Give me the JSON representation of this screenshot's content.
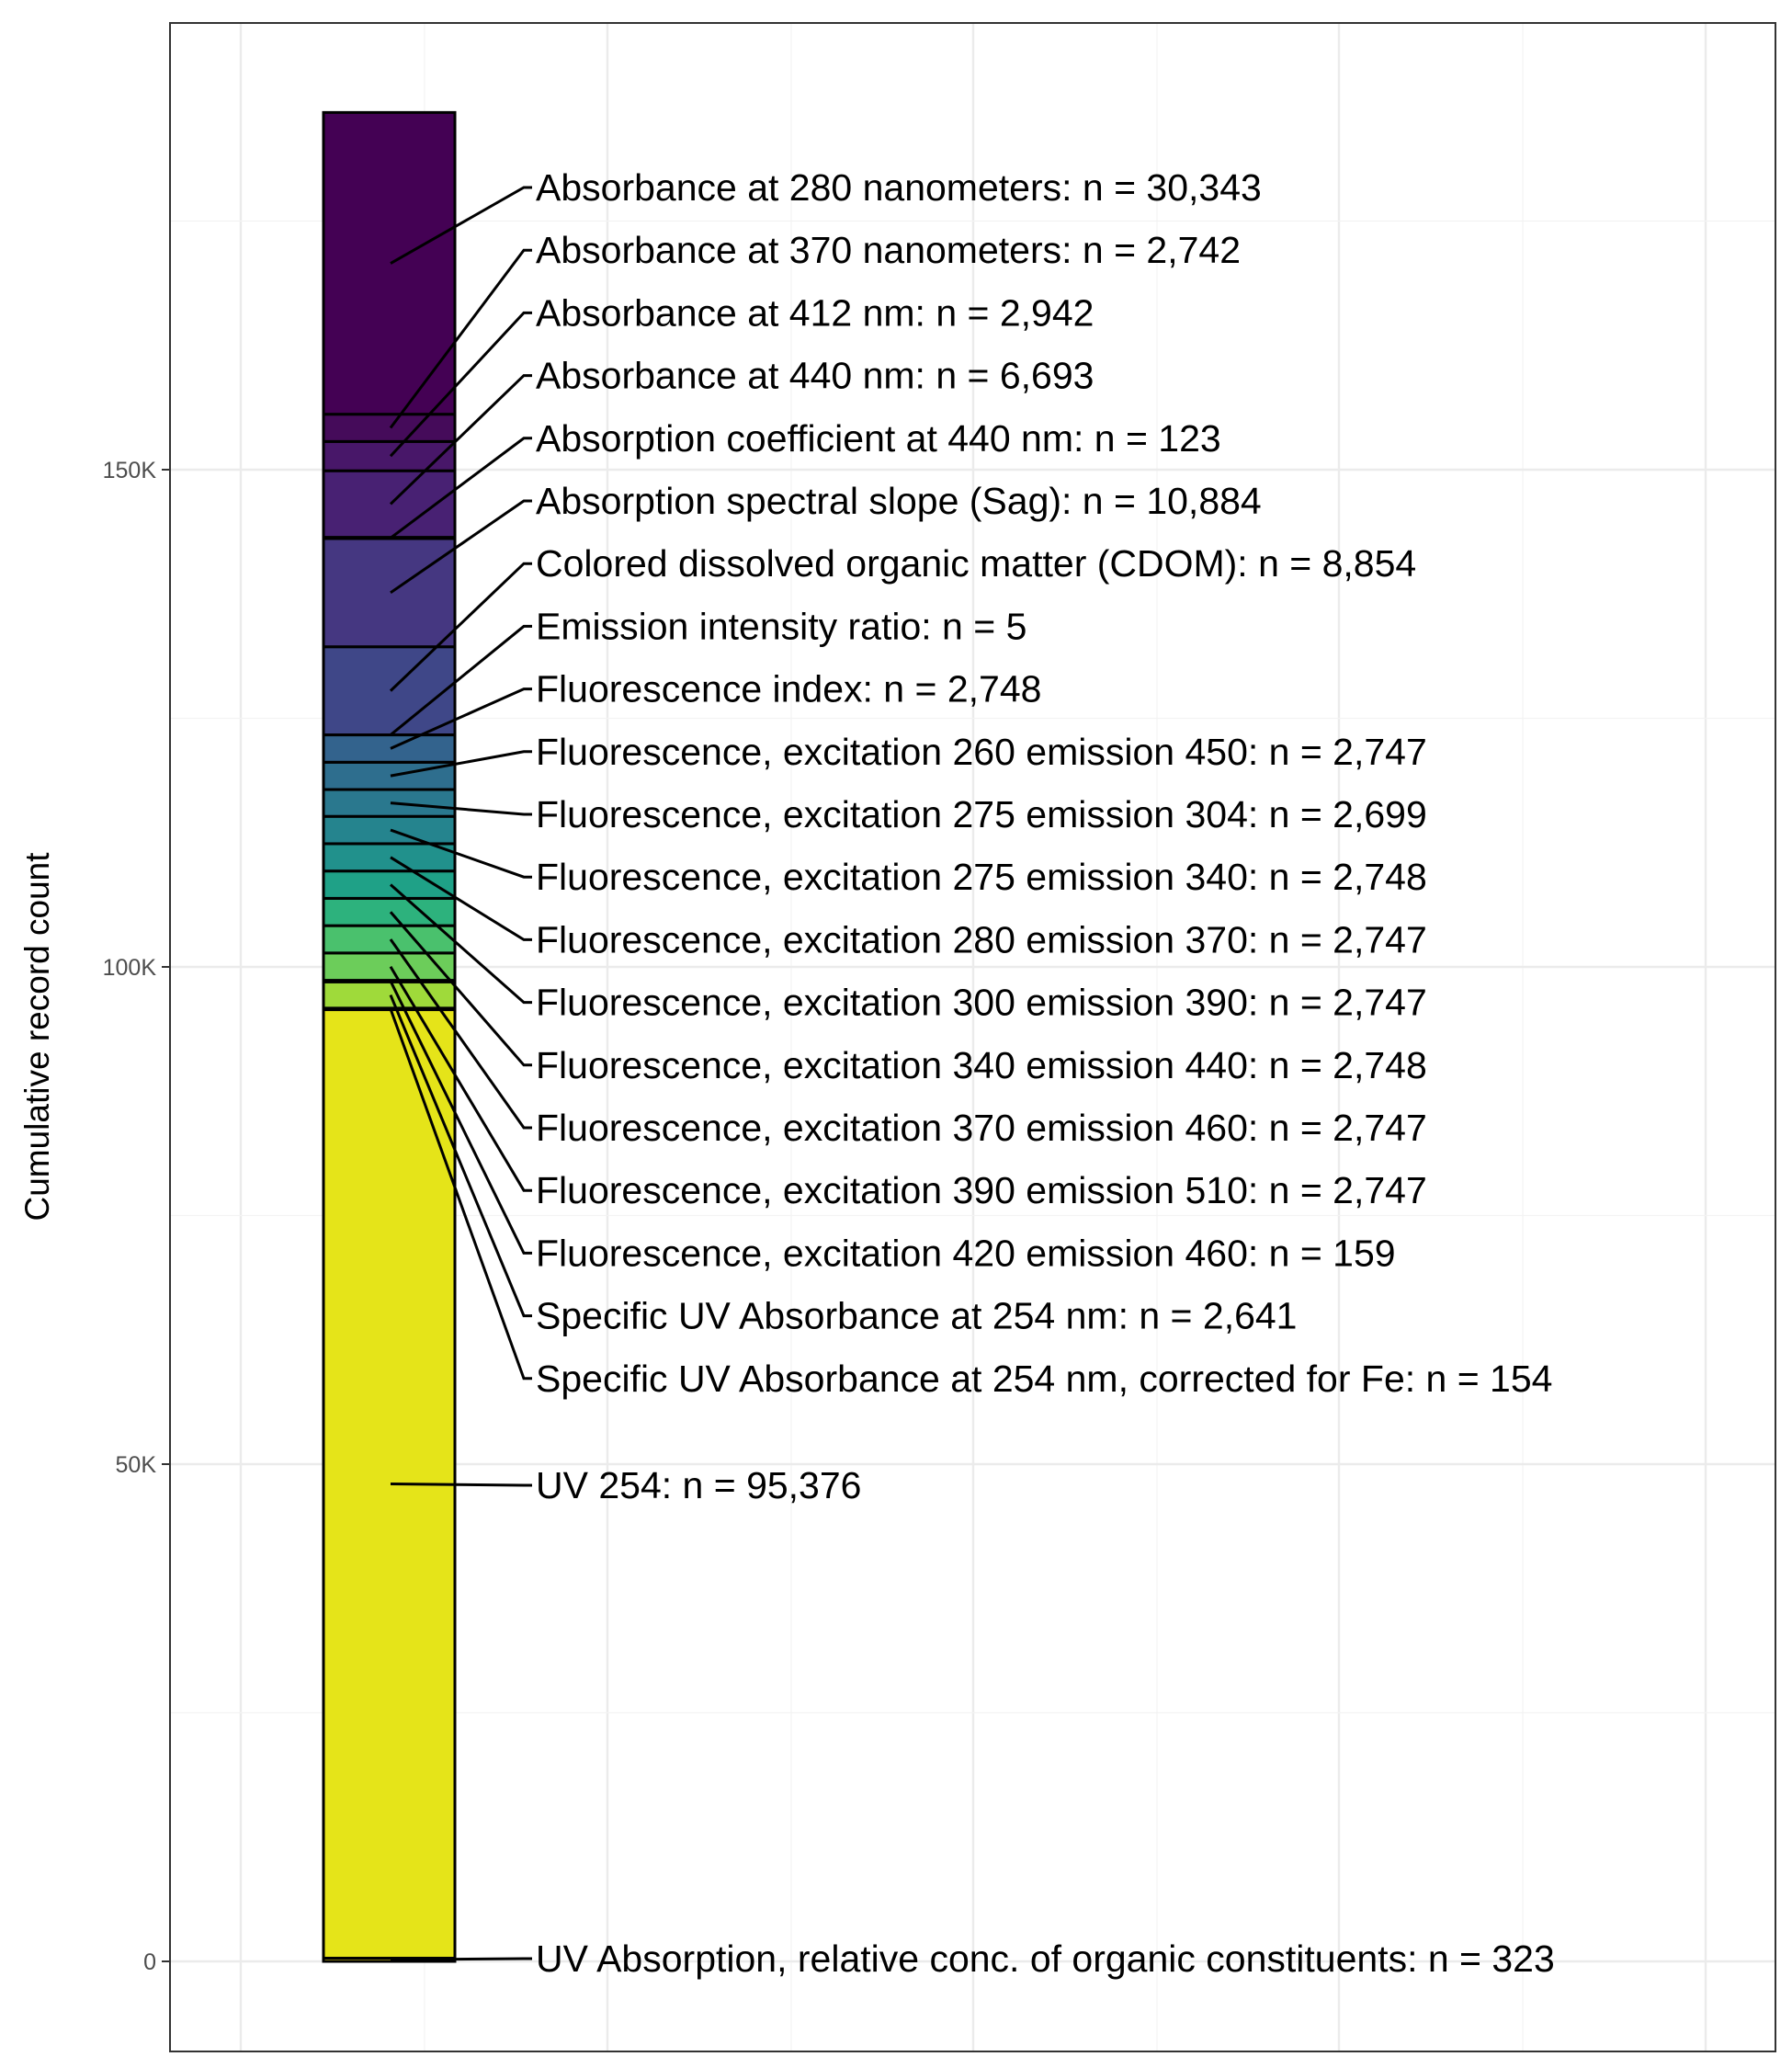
{
  "chart_data": {
    "type": "bar",
    "stacked": true,
    "ylabel": "Cumulative record count",
    "ylim": [
      -12000,
      182000
    ],
    "yticks": [
      {
        "value": 0,
        "label": "0"
      },
      {
        "value": 50000,
        "label": "50K"
      },
      {
        "value": 100000,
        "label": "100K"
      },
      {
        "value": 150000,
        "label": "150K"
      }
    ],
    "grid": true,
    "series": [
      {
        "name": "UV Absorption, relative conc. of organic constituents",
        "value": 323,
        "label": "UV Absorption, relative conc. of organic constituents: n = 323",
        "color": "#fde725"
      },
      {
        "name": "UV 254",
        "value": 95376,
        "label": "UV 254: n = 95,376",
        "color": "#e5e419"
      },
      {
        "name": "Specific UV Absorbance at 254 nm, corrected for Fe",
        "value": 154,
        "label": "Specific UV Absorbance at 254 nm, corrected for Fe: n = 154",
        "color": "#c2df23"
      },
      {
        "name": "Specific UV Absorbance at 254 nm",
        "value": 2641,
        "label": "Specific UV Absorbance at 254 nm: n = 2,641",
        "color": "#9fda3a"
      },
      {
        "name": "Fluorescence, excitation 420 emission 460",
        "value": 159,
        "label": "Fluorescence, excitation 420 emission 460: n = 159",
        "color": "#7ad151"
      },
      {
        "name": "Fluorescence, excitation 390 emission 510",
        "value": 2747,
        "label": "Fluorescence, excitation 390 emission 510: n = 2,747",
        "color": "#6ccd5a"
      },
      {
        "name": "Fluorescence, excitation 370 emission 460",
        "value": 2747,
        "label": "Fluorescence, excitation 370 emission 460: n = 2,747",
        "color": "#4ac16d"
      },
      {
        "name": "Fluorescence, excitation 340 emission 440",
        "value": 2748,
        "label": "Fluorescence, excitation 340 emission 440: n = 2,748",
        "color": "#2db27d"
      },
      {
        "name": "Fluorescence, excitation 300 emission 390",
        "value": 2747,
        "label": "Fluorescence, excitation 300 emission 390: n = 2,747",
        "color": "#1fa187"
      },
      {
        "name": "Fluorescence, excitation 280 emission 370",
        "value": 2747,
        "label": "Fluorescence, excitation 280 emission 370: n = 2,747",
        "color": "#21918c"
      },
      {
        "name": "Fluorescence, excitation 275 emission 340",
        "value": 2748,
        "label": "Fluorescence, excitation 275 emission 340: n = 2,748",
        "color": "#25848e"
      },
      {
        "name": "Fluorescence, excitation 275 emission 304",
        "value": 2699,
        "label": "Fluorescence, excitation 275 emission 304: n = 2,699",
        "color": "#2a788e"
      },
      {
        "name": "Fluorescence, excitation 260 emission 450",
        "value": 2747,
        "label": "Fluorescence, excitation 260 emission 450: n = 2,747",
        "color": "#2e6e8e"
      },
      {
        "name": "Fluorescence index",
        "value": 2748,
        "label": "Fluorescence index: n = 2,748",
        "color": "#33638d"
      },
      {
        "name": "Emission intensity ratio",
        "value": 5,
        "label": "Emission intensity ratio: n = 5",
        "color": "#3b528b"
      },
      {
        "name": "Colored dissolved organic matter (CDOM)",
        "value": 8854,
        "label": "Colored dissolved organic matter (CDOM): n = 8,854",
        "color": "#3f4788"
      },
      {
        "name": "Absorption spectral slope (Sag)",
        "value": 10884,
        "label": "Absorption spectral slope (Sag): n = 10,884",
        "color": "#453781"
      },
      {
        "name": "Absorption coefficient at 440 nm",
        "value": 123,
        "label": "Absorption coefficient at 440 nm: n = 123",
        "color": "#472c7a"
      },
      {
        "name": "Absorbance at 440 nm",
        "value": 6693,
        "label": "Absorbance at 440 nm: n = 6,693",
        "color": "#482173"
      },
      {
        "name": "Absorbance at 412 nm",
        "value": 2942,
        "label": "Absorbance at 412 nm: n = 2,942",
        "color": "#481769"
      },
      {
        "name": "Absorbance at 370 nanometers",
        "value": 2742,
        "label": "Absorbance at 370 nanometers: n = 2,742",
        "color": "#450b5a"
      },
      {
        "name": "Absorbance at 280 nanometers",
        "value": 30343,
        "label": "Absorbance at 280 nanometers: n = 30,343",
        "color": "#440154"
      }
    ]
  }
}
